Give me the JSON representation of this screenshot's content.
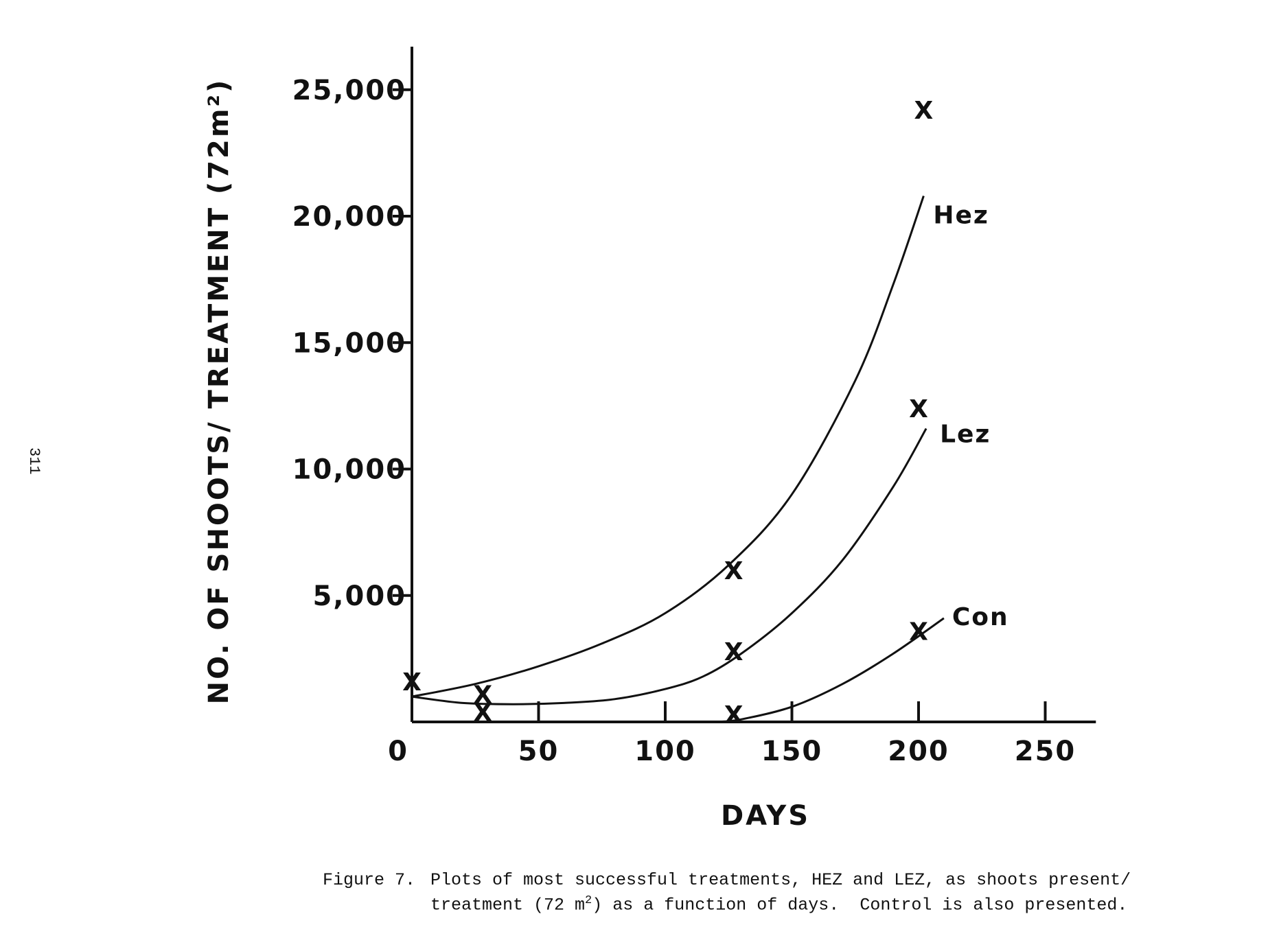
{
  "page_number": "311",
  "caption": {
    "label": "Figure 7.",
    "line1": "Plots of most successful treatments, HEZ and LEZ, as shoots present/",
    "line2_before": "treatment (72 m",
    "line2_sup": "2",
    "line2_after": ") as a function of days.  Control is also presented."
  },
  "chart_data": {
    "type": "line",
    "title": "",
    "xlabel": "DAYS",
    "ylabel": "NO. OF SHOOTS/ TREATMENT (72m²)",
    "xlim": [
      0,
      270
    ],
    "ylim": [
      0,
      27000
    ],
    "x_ticks": [
      0,
      50,
      100,
      150,
      200,
      250
    ],
    "x_tick_labels": [
      "0",
      "50",
      "100",
      "150",
      "200",
      "250"
    ],
    "y_ticks": [
      5000,
      10000,
      15000,
      20000,
      25000
    ],
    "y_tick_labels": [
      "5,000",
      "10,000",
      "15,000",
      "20,000",
      "25,000"
    ],
    "grid": false,
    "legend": "none",
    "series": [
      {
        "name": "Hez",
        "curve": [
          [
            0,
            1000
          ],
          [
            25,
            1500
          ],
          [
            50,
            2200
          ],
          [
            75,
            3100
          ],
          [
            100,
            4300
          ],
          [
            125,
            6200
          ],
          [
            150,
            9000
          ],
          [
            175,
            13500
          ],
          [
            190,
            17300
          ],
          [
            202,
            20800
          ]
        ],
        "points": [
          [
            127,
            6000
          ],
          [
            202,
            24200
          ]
        ]
      },
      {
        "name": "Lez",
        "curve": [
          [
            0,
            1000
          ],
          [
            20,
            750
          ],
          [
            40,
            700
          ],
          [
            60,
            750
          ],
          [
            80,
            900
          ],
          [
            100,
            1300
          ],
          [
            115,
            1800
          ],
          [
            130,
            2700
          ],
          [
            150,
            4300
          ],
          [
            170,
            6400
          ],
          [
            190,
            9300
          ],
          [
            203,
            11600
          ]
        ],
        "points": [
          [
            127,
            2800
          ],
          [
            200,
            12400
          ]
        ]
      },
      {
        "name": "Con",
        "curve": [
          [
            120,
            0
          ],
          [
            130,
            100
          ],
          [
            150,
            600
          ],
          [
            170,
            1500
          ],
          [
            190,
            2700
          ],
          [
            210,
            4100
          ]
        ],
        "points": [
          [
            127,
            300
          ],
          [
            200,
            3600
          ]
        ]
      }
    ],
    "control_points_shared": [
      [
        0,
        1600
      ],
      [
        28,
        1100
      ],
      [
        28,
        400
      ]
    ]
  }
}
